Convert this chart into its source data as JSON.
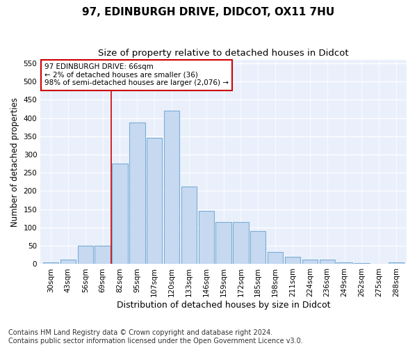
{
  "title": "97, EDINBURGH DRIVE, DIDCOT, OX11 7HU",
  "subtitle": "Size of property relative to detached houses in Didcot",
  "xlabel": "Distribution of detached houses by size in Didcot",
  "ylabel": "Number of detached properties",
  "categories": [
    "30sqm",
    "43sqm",
    "56sqm",
    "69sqm",
    "82sqm",
    "95sqm",
    "107sqm",
    "120sqm",
    "133sqm",
    "146sqm",
    "159sqm",
    "172sqm",
    "185sqm",
    "198sqm",
    "211sqm",
    "224sqm",
    "236sqm",
    "249sqm",
    "262sqm",
    "275sqm",
    "288sqm"
  ],
  "values": [
    5,
    12,
    50,
    50,
    275,
    388,
    345,
    420,
    213,
    145,
    115,
    115,
    90,
    33,
    20,
    12,
    12,
    5,
    3,
    1,
    5
  ],
  "bar_color": "#c6d9f1",
  "bar_edge_color": "#7aadd4",
  "vline_x": 3.5,
  "vline_color": "#cc0000",
  "annotation_text": "97 EDINBURGH DRIVE: 66sqm\n← 2% of detached houses are smaller (36)\n98% of semi-detached houses are larger (2,076) →",
  "annotation_box_color": "#ffffff",
  "annotation_box_edge": "#cc0000",
  "ylim": [
    0,
    560
  ],
  "yticks": [
    0,
    50,
    100,
    150,
    200,
    250,
    300,
    350,
    400,
    450,
    500,
    550
  ],
  "plot_bg_color": "#eaf0fb",
  "footer": "Contains HM Land Registry data © Crown copyright and database right 2024.\nContains public sector information licensed under the Open Government Licence v3.0.",
  "title_fontsize": 11,
  "subtitle_fontsize": 9.5,
  "xlabel_fontsize": 9,
  "ylabel_fontsize": 8.5,
  "tick_fontsize": 7.5,
  "footer_fontsize": 7
}
